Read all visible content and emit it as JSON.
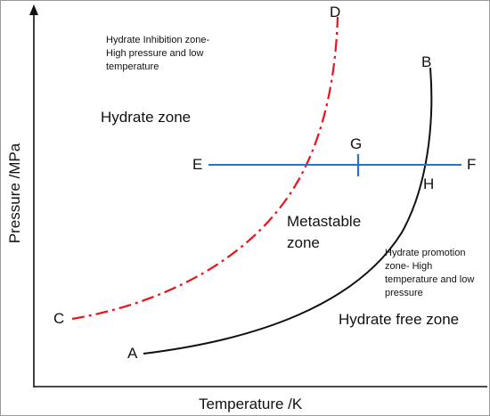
{
  "axes": {
    "x_label": "Temperature /K",
    "y_label": "Pressure /MPa"
  },
  "zones": {
    "inhibition_note": "Hydrate Inhibition zone- High pressure and low temperature",
    "hydrate_zone": "Hydrate zone",
    "metastable_zone": "Metastable zone",
    "promotion_note": "Hydrate promotion zone- High temperature and low pressure",
    "hydrate_free_zone": "Hydrate free zone"
  },
  "points": {
    "a": "A",
    "b": "B",
    "c": "C",
    "d": "D",
    "e": "E",
    "f": "F",
    "g": "G",
    "h": "H"
  },
  "colors": {
    "inhibition_curve": "#e8141c",
    "equilibrium_curve": "#111111",
    "isobar_line": "#1f78c8",
    "axes": "#111111"
  }
}
